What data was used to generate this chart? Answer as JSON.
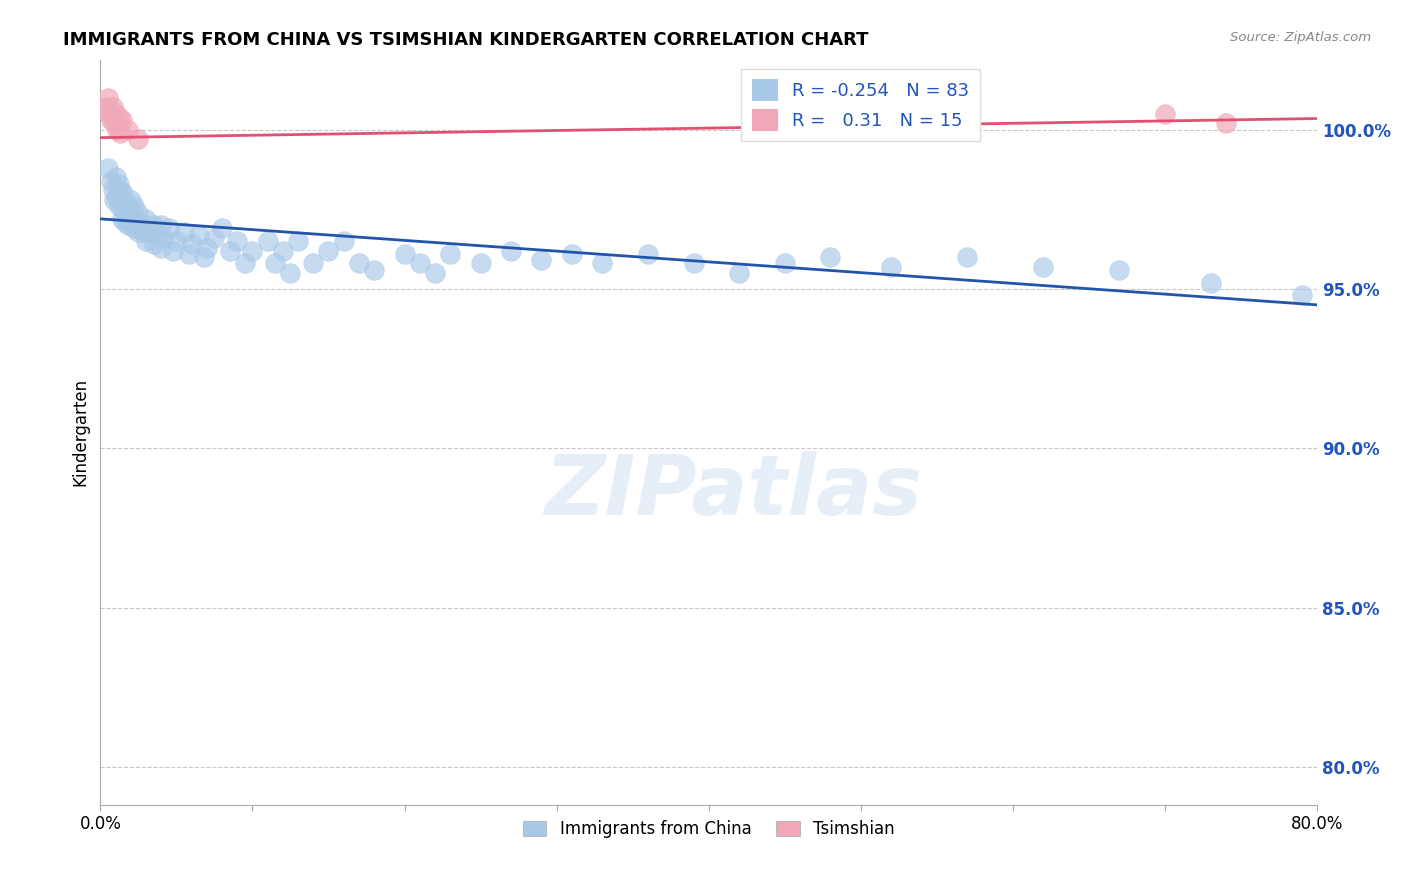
{
  "title": "IMMIGRANTS FROM CHINA VS TSIMSHIAN KINDERGARTEN CORRELATION CHART",
  "source_text": "Source: ZipAtlas.com",
  "ylabel": "Kindergarten",
  "legend_label1": "Immigrants from China",
  "legend_label2": "Tsimshian",
  "r1": -0.254,
  "n1": 83,
  "r2": 0.31,
  "n2": 15,
  "watermark": "ZIPatlas",
  "blue_color": "#a8c8e8",
  "pink_color": "#f0a8b8",
  "blue_line_color": "#2255aa",
  "pink_line_color": "#e05070",
  "xlim": [
    0.0,
    0.8
  ],
  "ylim": [
    0.788,
    1.022
  ],
  "yticks": [
    0.8,
    0.85,
    0.9,
    0.95,
    1.0
  ],
  "ytick_labels": [
    "80.0%",
    "85.0%",
    "90.0%",
    "95.0%",
    "100.0%"
  ],
  "xticks": [
    0.0,
    0.1,
    0.2,
    0.3,
    0.4,
    0.5,
    0.6,
    0.7,
    0.8
  ],
  "xtick_labels": [
    "0.0%",
    "",
    "",
    "",
    "",
    "",
    "",
    "",
    "80.0%"
  ],
  "blue_trend_x": [
    0.0,
    0.8
  ],
  "blue_trend_y": [
    0.972,
    0.945
  ],
  "pink_trend_x": [
    0.0,
    0.8
  ],
  "pink_trend_y": [
    0.9975,
    1.0035
  ],
  "blue_x": [
    0.005,
    0.007,
    0.008,
    0.009,
    0.01,
    0.01,
    0.012,
    0.012,
    0.013,
    0.014,
    0.014,
    0.015,
    0.015,
    0.016,
    0.016,
    0.017,
    0.018,
    0.018,
    0.019,
    0.02,
    0.02,
    0.021,
    0.022,
    0.022,
    0.023,
    0.025,
    0.025,
    0.026,
    0.028,
    0.03,
    0.03,
    0.032,
    0.035,
    0.035,
    0.038,
    0.04,
    0.04,
    0.042,
    0.045,
    0.048,
    0.05,
    0.055,
    0.058,
    0.06,
    0.065,
    0.068,
    0.07,
    0.075,
    0.08,
    0.085,
    0.09,
    0.095,
    0.1,
    0.11,
    0.115,
    0.12,
    0.125,
    0.13,
    0.14,
    0.15,
    0.16,
    0.17,
    0.18,
    0.2,
    0.21,
    0.22,
    0.23,
    0.25,
    0.27,
    0.29,
    0.31,
    0.33,
    0.36,
    0.39,
    0.42,
    0.45,
    0.48,
    0.52,
    0.57,
    0.62,
    0.67,
    0.73,
    0.79
  ],
  "blue_y": [
    0.988,
    0.984,
    0.981,
    0.978,
    0.985,
    0.979,
    0.983,
    0.976,
    0.981,
    0.977,
    0.972,
    0.98,
    0.975,
    0.977,
    0.971,
    0.974,
    0.976,
    0.97,
    0.973,
    0.978,
    0.971,
    0.974,
    0.976,
    0.969,
    0.972,
    0.974,
    0.968,
    0.971,
    0.968,
    0.972,
    0.965,
    0.968,
    0.97,
    0.964,
    0.967,
    0.97,
    0.963,
    0.966,
    0.969,
    0.962,
    0.965,
    0.968,
    0.961,
    0.964,
    0.967,
    0.96,
    0.963,
    0.966,
    0.969,
    0.962,
    0.965,
    0.958,
    0.962,
    0.965,
    0.958,
    0.962,
    0.955,
    0.965,
    0.958,
    0.962,
    0.965,
    0.958,
    0.956,
    0.961,
    0.958,
    0.955,
    0.961,
    0.958,
    0.962,
    0.959,
    0.961,
    0.958,
    0.961,
    0.958,
    0.955,
    0.958,
    0.96,
    0.957,
    0.96,
    0.957,
    0.956,
    0.952,
    0.948
  ],
  "pink_x": [
    0.004,
    0.005,
    0.006,
    0.007,
    0.008,
    0.009,
    0.01,
    0.011,
    0.012,
    0.013,
    0.014,
    0.018,
    0.025,
    0.7,
    0.74
  ],
  "pink_y": [
    1.007,
    1.01,
    1.005,
    1.003,
    1.007,
    1.002,
    1.005,
    1.0,
    1.004,
    0.999,
    1.003,
    1.0,
    0.997,
    1.005,
    1.002
  ]
}
